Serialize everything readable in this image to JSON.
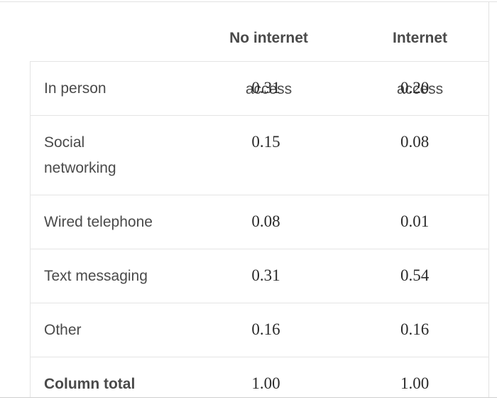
{
  "headers": [
    {
      "line1": "No internet",
      "line2": "access"
    },
    {
      "line1": "Internet",
      "line2": "access"
    }
  ],
  "rows": [
    {
      "label": "In person",
      "no_internet": "0.31",
      "internet": "0.20"
    },
    {
      "label": "Social\nnetworking",
      "no_internet": "0.15",
      "internet": "0.08"
    },
    {
      "label": "Wired telephone",
      "no_internet": "0.08",
      "internet": "0.01"
    },
    {
      "label": "Text messaging",
      "no_internet": "0.31",
      "internet": "0.54"
    },
    {
      "label": "Other",
      "no_internet": "0.16",
      "internet": "0.16"
    }
  ],
  "total": {
    "label": "Column total",
    "no_internet": "1.00",
    "internet": "1.00"
  }
}
